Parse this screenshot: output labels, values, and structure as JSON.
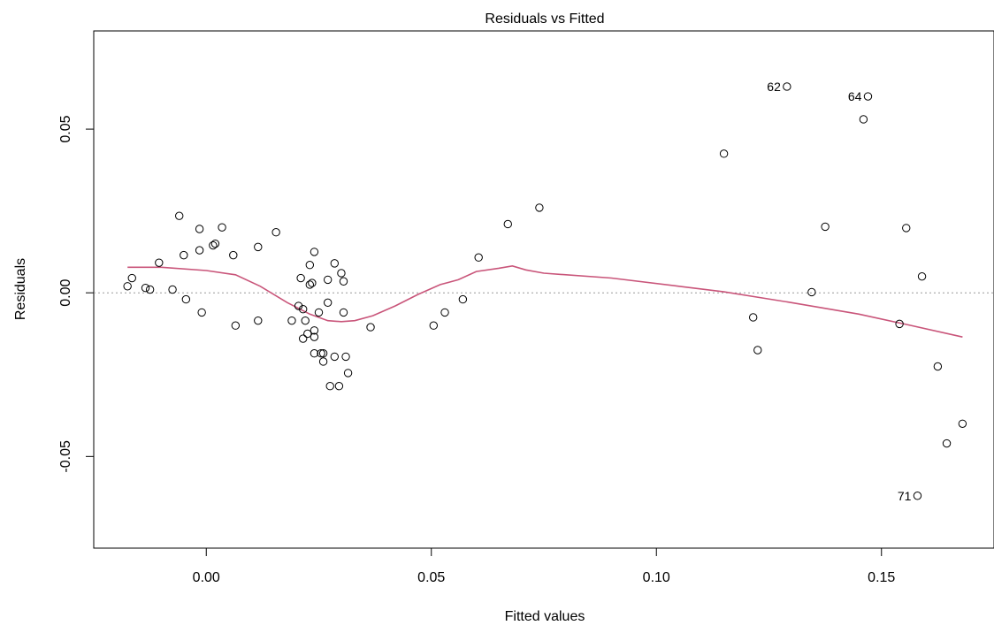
{
  "chart_data": {
    "type": "scatter",
    "title": "Residuals vs Fitted",
    "xlabel": "Fitted values",
    "ylabel": "Residuals",
    "xlim": [
      -0.025,
      0.175
    ],
    "ylim": [
      -0.078,
      0.08
    ],
    "x_ticks": [
      0.0,
      0.05,
      0.1,
      0.15
    ],
    "x_tick_labels": [
      "0.00",
      "0.05",
      "0.10",
      "0.15"
    ],
    "y_ticks": [
      -0.05,
      0.0,
      0.05
    ],
    "y_tick_labels": [
      "-0.05",
      "0.00",
      "0.05"
    ],
    "reference_line_y": 0,
    "colors": {
      "points": "#000000",
      "smooth": "#c9557a",
      "reference": "#999999"
    },
    "points": [
      [
        -0.0175,
        0.002
      ],
      [
        -0.0165,
        0.0045
      ],
      [
        -0.0135,
        0.0015
      ],
      [
        -0.0125,
        0.001
      ],
      [
        -0.0105,
        0.0092
      ],
      [
        -0.0075,
        0.001
      ],
      [
        -0.006,
        0.0235
      ],
      [
        -0.005,
        0.0115
      ],
      [
        -0.0045,
        -0.002
      ],
      [
        -0.0015,
        0.0195
      ],
      [
        -0.0015,
        0.013
      ],
      [
        -0.001,
        -0.006
      ],
      [
        0.0015,
        0.0145
      ],
      [
        0.002,
        0.015
      ],
      [
        0.0035,
        0.02
      ],
      [
        0.006,
        0.0115
      ],
      [
        0.0065,
        -0.01
      ],
      [
        0.0115,
        0.014
      ],
      [
        0.0115,
        -0.0085
      ],
      [
        0.0155,
        0.0185
      ],
      [
        0.019,
        -0.0085
      ],
      [
        0.0205,
        -0.004
      ],
      [
        0.021,
        0.0045
      ],
      [
        0.0215,
        -0.005
      ],
      [
        0.0215,
        -0.014
      ],
      [
        0.022,
        -0.0085
      ],
      [
        0.0225,
        -0.0125
      ],
      [
        0.023,
        0.0085
      ],
      [
        0.023,
        0.0025
      ],
      [
        0.0235,
        0.003
      ],
      [
        0.024,
        0.0125
      ],
      [
        0.024,
        -0.0115
      ],
      [
        0.024,
        -0.0135
      ],
      [
        0.024,
        -0.0185
      ],
      [
        0.025,
        -0.006
      ],
      [
        0.0255,
        -0.0185
      ],
      [
        0.026,
        -0.0185
      ],
      [
        0.026,
        -0.021
      ],
      [
        0.027,
        0.004
      ],
      [
        0.027,
        -0.003
      ],
      [
        0.0275,
        -0.0285
      ],
      [
        0.0285,
        0.009
      ],
      [
        0.0285,
        -0.0195
      ],
      [
        0.0295,
        -0.0285
      ],
      [
        0.03,
        0.006
      ],
      [
        0.0305,
        0.0035
      ],
      [
        0.0305,
        -0.006
      ],
      [
        0.031,
        -0.0195
      ],
      [
        0.0315,
        -0.0245
      ],
      [
        0.0365,
        -0.0105
      ],
      [
        0.0505,
        -0.01
      ],
      [
        0.053,
        -0.006
      ],
      [
        0.057,
        -0.002
      ],
      [
        0.0605,
        0.0108
      ],
      [
        0.067,
        0.021
      ],
      [
        0.074,
        0.026
      ],
      [
        0.115,
        0.0425
      ],
      [
        0.1215,
        -0.0075
      ],
      [
        0.1225,
        -0.0175
      ],
      [
        0.129,
        0.063
      ],
      [
        0.1345,
        0.0002
      ],
      [
        0.1375,
        0.0202
      ],
      [
        0.146,
        0.053
      ],
      [
        0.147,
        0.06
      ],
      [
        0.154,
        -0.0095
      ],
      [
        0.1555,
        0.0198
      ],
      [
        0.158,
        -0.062
      ],
      [
        0.159,
        0.005
      ],
      [
        0.1625,
        -0.0225
      ],
      [
        0.1645,
        -0.046
      ],
      [
        0.168,
        -0.04
      ]
    ],
    "point_labels": [
      {
        "text": "62",
        "x": 0.129,
        "y": 0.063
      },
      {
        "text": "64",
        "x": 0.147,
        "y": 0.06
      },
      {
        "text": "71",
        "x": 0.158,
        "y": -0.062
      }
    ],
    "smooth_line": [
      [
        -0.0175,
        0.0078
      ],
      [
        -0.01,
        0.0078
      ],
      [
        0.0,
        0.0068
      ],
      [
        0.0065,
        0.0055
      ],
      [
        0.012,
        0.002
      ],
      [
        0.018,
        -0.003
      ],
      [
        0.023,
        -0.0065
      ],
      [
        0.027,
        -0.0085
      ],
      [
        0.03,
        -0.0088
      ],
      [
        0.033,
        -0.0085
      ],
      [
        0.037,
        -0.007
      ],
      [
        0.042,
        -0.004
      ],
      [
        0.047,
        -0.0005
      ],
      [
        0.052,
        0.0025
      ],
      [
        0.056,
        0.004
      ],
      [
        0.06,
        0.0065
      ],
      [
        0.065,
        0.0075
      ],
      [
        0.068,
        0.0082
      ],
      [
        0.071,
        0.007
      ],
      [
        0.075,
        0.006
      ],
      [
        0.09,
        0.0045
      ],
      [
        0.105,
        0.002
      ],
      [
        0.115,
        0.0003
      ],
      [
        0.13,
        -0.003
      ],
      [
        0.145,
        -0.0065
      ],
      [
        0.155,
        -0.0095
      ],
      [
        0.168,
        -0.0135
      ]
    ]
  }
}
